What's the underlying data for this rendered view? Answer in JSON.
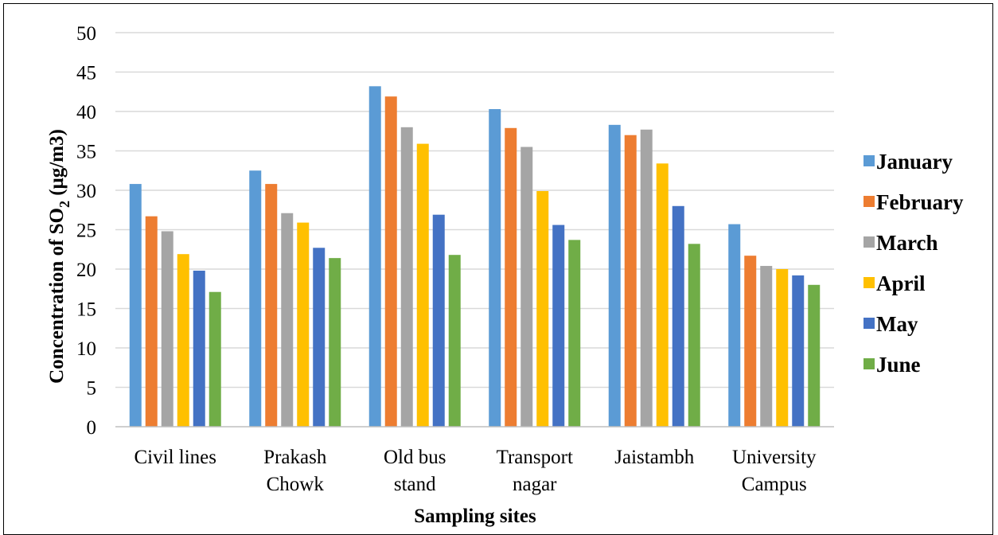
{
  "chart_data": {
    "type": "bar",
    "title": "",
    "xlabel": "Sampling sites",
    "ylabel": {
      "prefix": "Concentration of SO",
      "subscript": "2",
      "suffix": " (μg/m3)"
    },
    "ylim": [
      0,
      50
    ],
    "yticks": [
      0,
      5,
      10,
      15,
      20,
      25,
      30,
      35,
      40,
      45,
      50
    ],
    "grid": true,
    "legend_position": "right",
    "categories": [
      [
        "Civil lines"
      ],
      [
        "Prakash",
        "Chowk"
      ],
      [
        "Old bus",
        "stand"
      ],
      [
        "Transport",
        "nagar"
      ],
      [
        "Jaistambh"
      ],
      [
        "University",
        "Campus"
      ]
    ],
    "series": [
      {
        "name": "January",
        "color": "#5b9bd5",
        "values": [
          30.8,
          32.5,
          43.2,
          40.3,
          38.3,
          25.7
        ]
      },
      {
        "name": "February",
        "color": "#ed7d31",
        "values": [
          26.7,
          30.8,
          41.9,
          37.9,
          37.0,
          21.7
        ]
      },
      {
        "name": "March",
        "color": "#a5a5a5",
        "values": [
          24.8,
          27.1,
          38.0,
          35.5,
          37.7,
          20.4
        ]
      },
      {
        "name": "April",
        "color": "#ffc000",
        "values": [
          21.9,
          25.9,
          35.9,
          29.9,
          33.4,
          20.0
        ]
      },
      {
        "name": "May",
        "color": "#4472c4",
        "values": [
          19.8,
          22.7,
          26.9,
          25.6,
          28.0,
          19.2
        ]
      },
      {
        "name": "June",
        "color": "#70ad47",
        "values": [
          17.1,
          21.4,
          21.8,
          23.7,
          23.2,
          18.0
        ]
      }
    ]
  }
}
